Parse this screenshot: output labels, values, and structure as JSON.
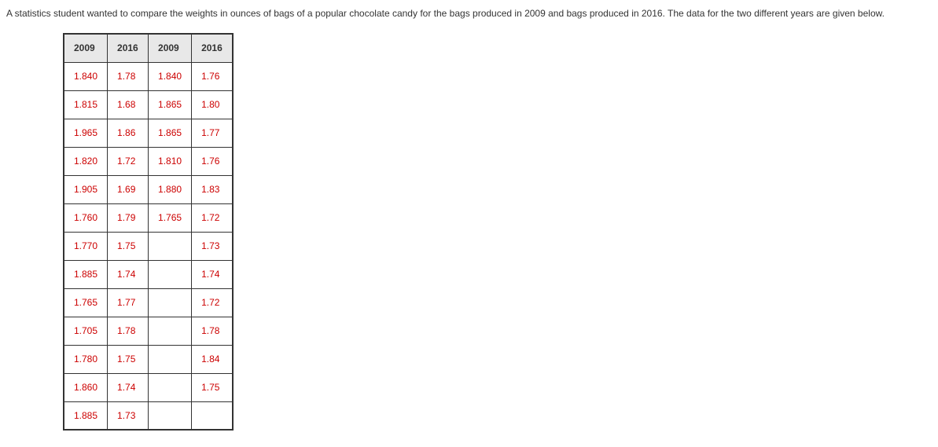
{
  "intro": "A statistics student wanted to compare the weights in ounces of bags of a popular chocolate candy for the bags produced in 2009 and bags produced in 2016. The data for the two different years are given below.",
  "table": {
    "headers": [
      "2009",
      "2016",
      "2009",
      "2016"
    ],
    "rows": [
      [
        "1.840",
        "1.78",
        "1.840",
        "1.76"
      ],
      [
        "1.815",
        "1.68",
        "1.865",
        "1.80"
      ],
      [
        "1.965",
        "1.86",
        "1.865",
        "1.77"
      ],
      [
        "1.820",
        "1.72",
        "1.810",
        "1.76"
      ],
      [
        "1.905",
        "1.69",
        "1.880",
        "1.83"
      ],
      [
        "1.760",
        "1.79",
        "1.765",
        "1.72"
      ],
      [
        "1.770",
        "1.75",
        "",
        "1.73"
      ],
      [
        "1.885",
        "1.74",
        "",
        "1.74"
      ],
      [
        "1.765",
        "1.77",
        "",
        "1.72"
      ],
      [
        "1.705",
        "1.78",
        "",
        "1.78"
      ],
      [
        "1.780",
        "1.75",
        "",
        "1.84"
      ],
      [
        "1.860",
        "1.74",
        "",
        "1.75"
      ],
      [
        "1.885",
        "1.73",
        "",
        ""
      ]
    ],
    "header_bg_color": "#e8e8e8",
    "header_text_color": "#333333",
    "cell_text_color": "#cc0000",
    "cell_bg_color": "#ffffff",
    "border_color": "#333333",
    "font_family": "Verdana, Geneva, sans-serif",
    "font_size": 12
  }
}
